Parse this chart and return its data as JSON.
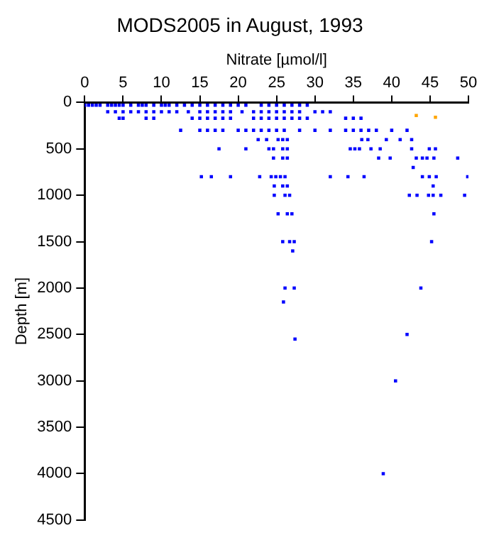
{
  "chart_data": {
    "type": "scatter",
    "title": "MODS2005 in August, 1993",
    "xlabel": "Nitrate [µmol/l]",
    "ylabel": "Depth [m]",
    "xlim": [
      0,
      50
    ],
    "xticks": [
      0,
      5,
      10,
      15,
      20,
      25,
      30,
      35,
      40,
      45,
      50
    ],
    "ylim": [
      4500,
      0
    ],
    "yticks": [
      0,
      500,
      1000,
      1500,
      2000,
      2500,
      3000,
      3500,
      4000,
      4500
    ],
    "grid": false,
    "legend": false,
    "marker": "square",
    "series": [
      {
        "color": "#0000ff",
        "x": [
          0,
          0.5,
          1,
          1.5,
          2,
          3,
          3.5,
          4,
          4.5,
          5,
          6,
          7,
          7.5,
          8,
          9,
          10,
          10.5,
          11,
          12,
          13,
          14,
          15,
          16,
          17,
          18,
          19,
          20,
          21,
          23,
          24,
          25,
          26,
          27,
          28,
          29,
          3,
          4,
          5,
          6,
          7,
          8,
          9,
          10,
          11,
          12,
          13.5,
          15,
          16,
          17,
          18,
          19,
          20.5,
          22,
          23,
          24,
          25,
          26,
          27,
          28,
          30,
          31,
          32,
          4.5,
          5,
          8,
          9,
          14,
          15,
          16,
          17,
          18,
          19,
          22,
          23,
          24,
          25,
          26,
          27,
          29,
          34,
          35,
          36,
          28,
          12.5,
          15,
          16,
          17,
          18,
          20,
          21,
          22,
          23,
          24,
          25,
          26,
          28,
          30,
          32,
          34,
          35,
          36,
          37,
          38,
          40,
          42,
          22.6,
          23.7,
          25.2,
          25.8,
          26.4,
          36.1,
          36.9,
          39.3,
          41.1,
          42.6,
          17.5,
          21,
          24,
          24.6,
          25.8,
          26.4,
          34.6,
          35.2,
          35.8,
          37.3,
          38.5,
          42.6,
          44.9,
          45.7,
          24.6,
          25.8,
          26.4,
          38.3,
          39.8,
          43.2,
          44,
          44.6,
          45.5,
          48.6,
          42.8,
          15.2,
          16.5,
          19,
          22.8,
          24.3,
          24.9,
          25.5,
          26.1,
          32,
          34.3,
          36.4,
          44,
          44.9,
          45.8,
          49.9,
          24.7,
          25.8,
          26.4,
          45.4,
          24.7,
          26.1,
          26.7,
          42.3,
          43.3,
          44.8,
          45.4,
          46.4,
          49.5,
          25.2,
          26.4,
          27,
          45.5,
          25.8,
          26.7,
          27.3,
          45.2,
          27.1,
          26.1,
          27.3,
          43.8,
          25.9,
          42,
          27.4,
          40.5,
          38.9
        ],
        "values": [
          30,
          30,
          30,
          30,
          30,
          30,
          30,
          30,
          30,
          30,
          30,
          30,
          30,
          30,
          30,
          30,
          30,
          30,
          30,
          30,
          30,
          30,
          30,
          30,
          30,
          30,
          30,
          30,
          30,
          30,
          30,
          30,
          30,
          30,
          30,
          100,
          100,
          100,
          100,
          100,
          100,
          100,
          100,
          100,
          100,
          100,
          100,
          100,
          100,
          100,
          100,
          100,
          100,
          100,
          100,
          100,
          100,
          100,
          100,
          100,
          100,
          100,
          170,
          170,
          170,
          170,
          170,
          170,
          170,
          170,
          170,
          170,
          170,
          170,
          170,
          170,
          170,
          170,
          170,
          170,
          170,
          170,
          170,
          300,
          300,
          300,
          300,
          300,
          300,
          300,
          300,
          300,
          300,
          300,
          300,
          300,
          300,
          300,
          300,
          300,
          300,
          300,
          300,
          300,
          300,
          400,
          400,
          400,
          400,
          400,
          400,
          400,
          400,
          400,
          400,
          500,
          500,
          500,
          500,
          500,
          500,
          500,
          500,
          500,
          500,
          500,
          500,
          500,
          500,
          600,
          600,
          600,
          600,
          600,
          600,
          600,
          600,
          600,
          600,
          700,
          800,
          800,
          800,
          800,
          800,
          800,
          800,
          800,
          800,
          800,
          800,
          800,
          800,
          800,
          800,
          900,
          900,
          900,
          900,
          1000,
          1000,
          1000,
          1000,
          1000,
          1000,
          1000,
          1000,
          1000,
          1200,
          1200,
          1200,
          1200,
          1500,
          1500,
          1500,
          1500,
          1600,
          2000,
          2000,
          2000,
          2150,
          2500,
          2550,
          3000,
          4000
        ]
      },
      {
        "color": "#ffa500",
        "x": [
          43.2,
          45.7
        ],
        "values": [
          140,
          160
        ]
      }
    ]
  }
}
